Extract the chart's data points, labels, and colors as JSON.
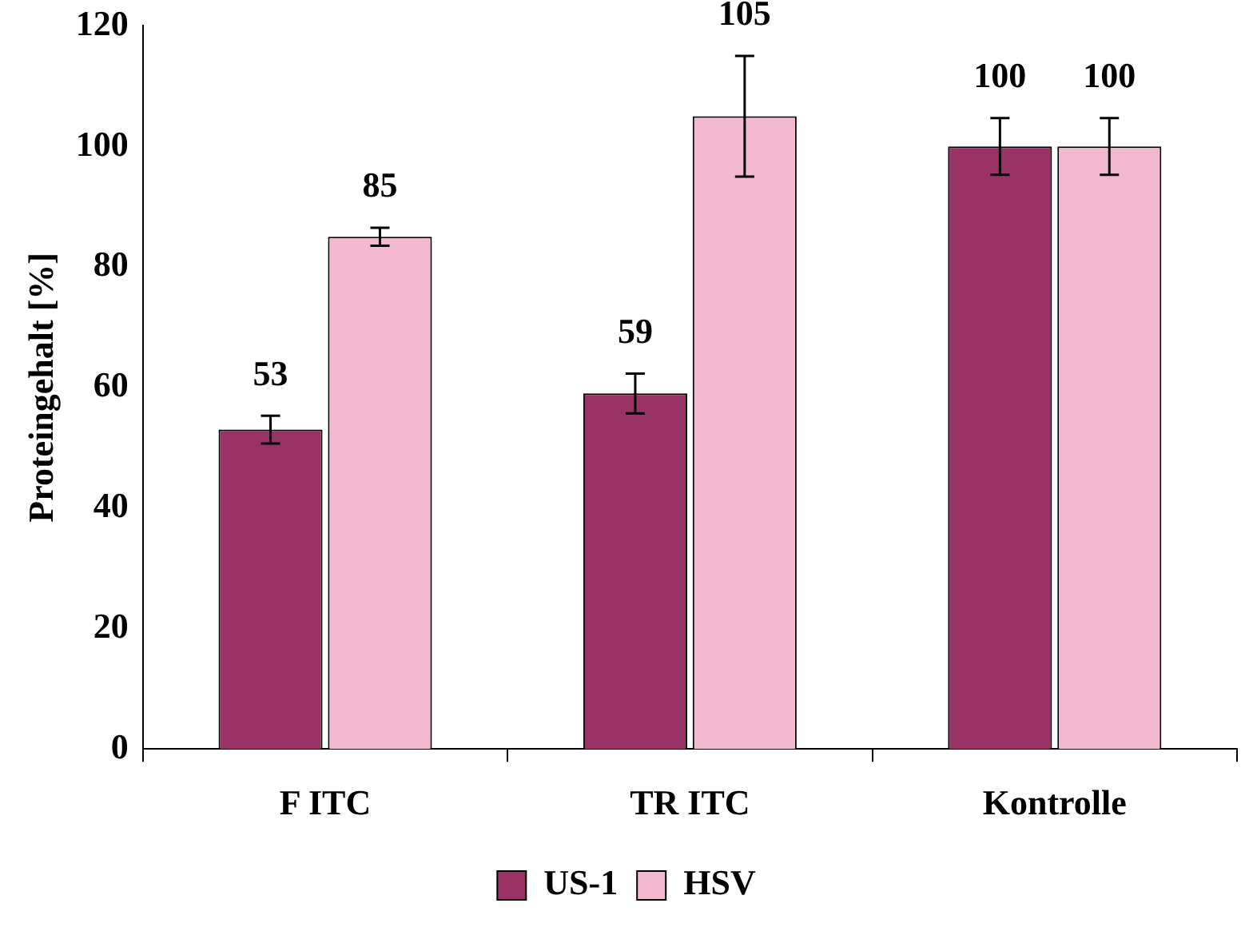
{
  "chart_data": {
    "type": "bar",
    "ylabel": "Proteingehalt [%]",
    "categories": [
      "F ITC",
      "TR ITC",
      "Kontrolle"
    ],
    "series": [
      {
        "name": "US-1",
        "color": "#993366",
        "values": [
          53,
          59,
          100
        ],
        "errors": [
          2.3,
          3.3,
          4.7
        ]
      },
      {
        "name": "HSV",
        "color": "#f2b8cf",
        "values": [
          85,
          105,
          100
        ],
        "errors": [
          1.5,
          10,
          4.7
        ]
      }
    ],
    "ylim": [
      0,
      120
    ],
    "yticks": [
      0,
      20,
      40,
      60,
      80,
      100,
      120
    ],
    "legend": "bottom",
    "data_labels": true
  }
}
